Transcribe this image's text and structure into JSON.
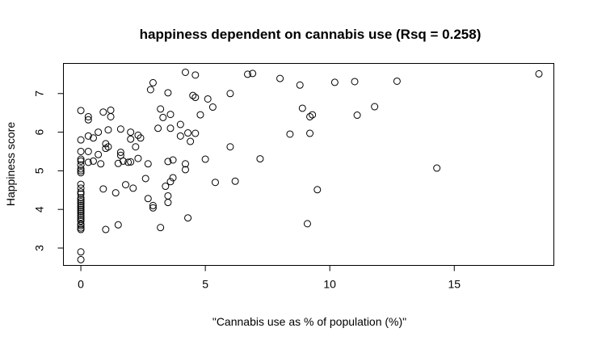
{
  "chart_data": {
    "type": "scatter",
    "title": "happiness dependent on cannabis use (Rsq = 0.258)",
    "xlabel": "\"Cannabis use as % of population (%)\"",
    "ylabel": "Happiness score",
    "xlim": [
      -0.7,
      19.0
    ],
    "ylim": [
      2.55,
      7.78
    ],
    "xticks": [
      0,
      5,
      10,
      15
    ],
    "yticks": [
      3,
      4,
      5,
      6,
      7
    ],
    "grid": false,
    "points": [
      [
        0.0,
        2.7
      ],
      [
        0.0,
        2.9
      ],
      [
        0.0,
        3.48
      ],
      [
        0.0,
        3.52
      ],
      [
        0.0,
        3.58
      ],
      [
        0.0,
        3.62
      ],
      [
        0.0,
        3.7
      ],
      [
        0.0,
        3.75
      ],
      [
        0.0,
        3.8
      ],
      [
        0.0,
        3.85
      ],
      [
        0.0,
        3.9
      ],
      [
        0.0,
        3.95
      ],
      [
        0.0,
        4.0
      ],
      [
        0.0,
        4.05
      ],
      [
        0.0,
        4.1
      ],
      [
        0.0,
        4.15
      ],
      [
        0.0,
        4.2
      ],
      [
        0.0,
        4.25
      ],
      [
        0.0,
        4.3
      ],
      [
        0.0,
        4.4
      ],
      [
        0.0,
        4.45
      ],
      [
        0.0,
        4.55
      ],
      [
        0.0,
        4.65
      ],
      [
        0.0,
        4.95
      ],
      [
        0.0,
        5.0
      ],
      [
        0.0,
        5.05
      ],
      [
        0.0,
        5.15
      ],
      [
        0.0,
        5.25
      ],
      [
        0.0,
        5.3
      ],
      [
        0.0,
        5.5
      ],
      [
        0.0,
        5.8
      ],
      [
        0.0,
        6.56
      ],
      [
        0.3,
        6.4
      ],
      [
        0.3,
        6.32
      ],
      [
        0.3,
        5.9
      ],
      [
        0.3,
        5.5
      ],
      [
        0.3,
        5.22
      ],
      [
        0.5,
        5.25
      ],
      [
        0.5,
        5.85
      ],
      [
        0.7,
        6.0
      ],
      [
        0.7,
        5.42
      ],
      [
        0.8,
        5.18
      ],
      [
        0.9,
        6.52
      ],
      [
        0.9,
        4.53
      ],
      [
        1.0,
        3.48
      ],
      [
        1.0,
        5.7
      ],
      [
        1.0,
        5.58
      ],
      [
        1.1,
        5.62
      ],
      [
        1.1,
        6.06
      ],
      [
        1.2,
        6.4
      ],
      [
        1.2,
        6.57
      ],
      [
        1.4,
        4.43
      ],
      [
        1.5,
        3.6
      ],
      [
        1.5,
        5.19
      ],
      [
        1.6,
        5.48
      ],
      [
        1.6,
        5.4
      ],
      [
        1.6,
        6.08
      ],
      [
        1.7,
        5.25
      ],
      [
        1.8,
        4.64
      ],
      [
        1.9,
        5.22
      ],
      [
        2.0,
        5.23
      ],
      [
        2.0,
        5.82
      ],
      [
        2.0,
        6.0
      ],
      [
        2.1,
        4.55
      ],
      [
        2.2,
        5.62
      ],
      [
        2.3,
        5.92
      ],
      [
        2.3,
        5.32
      ],
      [
        2.4,
        5.85
      ],
      [
        2.6,
        4.8
      ],
      [
        2.7,
        5.18
      ],
      [
        2.7,
        4.28
      ],
      [
        2.8,
        7.1
      ],
      [
        2.9,
        7.28
      ],
      [
        2.9,
        4.1
      ],
      [
        2.9,
        4.04
      ],
      [
        3.1,
        6.1
      ],
      [
        3.2,
        3.53
      ],
      [
        3.2,
        6.6
      ],
      [
        3.3,
        6.38
      ],
      [
        3.4,
        4.6
      ],
      [
        3.5,
        4.35
      ],
      [
        3.5,
        4.18
      ],
      [
        3.5,
        7.02
      ],
      [
        3.5,
        5.24
      ],
      [
        3.6,
        6.46
      ],
      [
        3.6,
        4.72
      ],
      [
        3.6,
        6.1
      ],
      [
        3.7,
        5.28
      ],
      [
        3.7,
        4.82
      ],
      [
        4.0,
        6.2
      ],
      [
        4.0,
        5.9
      ],
      [
        4.2,
        7.55
      ],
      [
        4.2,
        5.18
      ],
      [
        4.2,
        5.03
      ],
      [
        4.3,
        3.78
      ],
      [
        4.3,
        5.98
      ],
      [
        4.4,
        5.76
      ],
      [
        4.5,
        6.95
      ],
      [
        4.6,
        7.48
      ],
      [
        4.6,
        6.9
      ],
      [
        4.6,
        5.97
      ],
      [
        4.8,
        6.45
      ],
      [
        5.0,
        5.3
      ],
      [
        5.1,
        6.86
      ],
      [
        5.3,
        6.65
      ],
      [
        5.4,
        4.7
      ],
      [
        6.0,
        7.0
      ],
      [
        6.0,
        5.62
      ],
      [
        6.2,
        4.73
      ],
      [
        6.7,
        7.5
      ],
      [
        6.9,
        7.52
      ],
      [
        7.2,
        5.31
      ],
      [
        8.0,
        7.39
      ],
      [
        8.4,
        5.95
      ],
      [
        8.8,
        7.22
      ],
      [
        8.9,
        6.62
      ],
      [
        9.1,
        3.63
      ],
      [
        9.2,
        5.97
      ],
      [
        9.2,
        6.4
      ],
      [
        9.3,
        6.45
      ],
      [
        9.5,
        4.51
      ],
      [
        10.2,
        7.29
      ],
      [
        11.0,
        7.31
      ],
      [
        11.1,
        6.44
      ],
      [
        11.8,
        6.66
      ],
      [
        12.7,
        7.32
      ],
      [
        14.3,
        5.07
      ],
      [
        18.4,
        7.51
      ]
    ]
  }
}
